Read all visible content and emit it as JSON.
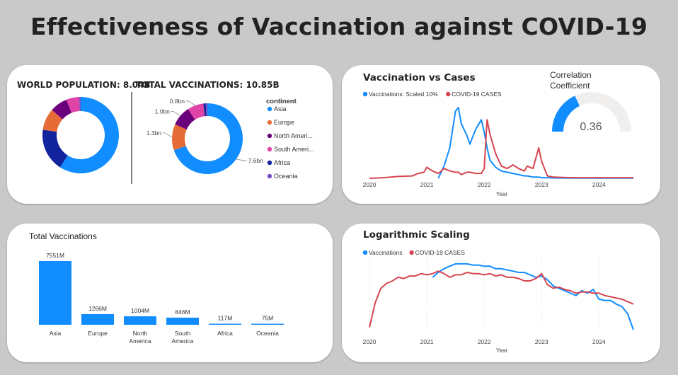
{
  "page": {
    "title": "Effectiveness of Vaccination against COVID-19"
  },
  "donut_card": {
    "world_population_label": "WORLD POPULATION: 8.04B",
    "total_vaccinations_label": "TOTAL VACCINATIONS: 10.85B",
    "legend_title": "continent",
    "legend": [
      {
        "name": "Asia",
        "color": "#118dff"
      },
      {
        "name": "Europe",
        "color": "#e66c37"
      },
      {
        "name": "North Ameri...",
        "color": "#6b007b"
      },
      {
        "name": "South Ameri...",
        "color": "#e044a7"
      },
      {
        "name": "Africa",
        "color": "#12239e"
      },
      {
        "name": "Oceania",
        "color": "#744ec2"
      }
    ]
  },
  "line_card1": {
    "title": "Vaccination vs Cases",
    "legend": [
      {
        "name": "Vaccinations: Scaled 10%",
        "color": "#118dff"
      },
      {
        "name": "COVID-19 CASES",
        "color": "#d64550"
      }
    ],
    "xlabel": "Year",
    "gauge": {
      "title_line1": "Correlation",
      "title_line2": "Coefficient",
      "value": 0.36,
      "value_label": "0.36",
      "fill_color": "#118dff",
      "track_color": "#f0efed"
    }
  },
  "bar_card": {
    "title": "Total Vaccinations"
  },
  "line_card2": {
    "title": "Logarithmic Scaling",
    "legend": [
      {
        "name": "Vaccinations",
        "color": "#118dff"
      },
      {
        "name": "COVID-19 CASES",
        "color": "#d64550"
      }
    ],
    "xlabel": "Year"
  },
  "chart_data": [
    {
      "type": "pie",
      "name": "World Population by continent",
      "categories": [
        "Asia",
        "Africa",
        "Europe",
        "North America",
        "South America",
        "Oceania"
      ],
      "values": [
        4.75,
        1.46,
        0.74,
        0.6,
        0.44,
        0.05
      ],
      "colors": [
        "#118dff",
        "#12239e",
        "#e66c37",
        "#6b007b",
        "#e044a7",
        "#744ec2"
      ]
    },
    {
      "type": "pie",
      "name": "Total Vaccinations by continent",
      "categories": [
        "Asia",
        "Europe",
        "North America",
        "South America",
        "Africa",
        "Oceania"
      ],
      "values": [
        7.6,
        1.3,
        1.0,
        0.8,
        0.12,
        0.08
      ],
      "data_labels": [
        "7.6bn",
        "1.3bn",
        "1.0bn",
        "0.8bn",
        "",
        ""
      ],
      "colors": [
        "#118dff",
        "#e66c37",
        "#6b007b",
        "#e044a7",
        "#12239e",
        "#744ec2"
      ]
    },
    {
      "type": "line",
      "title": "Vaccination vs Cases",
      "x": [
        2020.0,
        2020.25,
        2020.5,
        2020.75,
        2020.85,
        2020.95,
        2021.0,
        2021.1,
        2021.2,
        2021.3,
        2021.4,
        2021.5,
        2021.55,
        2021.6,
        2021.7,
        2021.75,
        2021.85,
        2021.95,
        2022.0,
        2022.05,
        2022.1,
        2022.2,
        2022.3,
        2022.4,
        2022.5,
        2022.6,
        2022.7,
        2022.75,
        2022.85,
        2022.95,
        2023.0,
        2023.05,
        2023.1,
        2023.2,
        2023.5,
        2024.0,
        2024.6
      ],
      "series": [
        {
          "name": "Vaccinations: Scaled 10%",
          "values": [
            null,
            null,
            null,
            null,
            null,
            null,
            null,
            null,
            0,
            10,
            25,
            55,
            58,
            45,
            35,
            28,
            40,
            48,
            38,
            25,
            15,
            9,
            6,
            5,
            4,
            3,
            2,
            2,
            1,
            1,
            0.5,
            0.5,
            0.5,
            0.3,
            0.2,
            0.1,
            0.1
          ]
        },
        {
          "name": "COVID-19 CASES",
          "values": [
            0,
            0.5,
            1.5,
            2,
            4,
            5,
            9,
            6,
            4,
            8,
            6,
            5,
            5,
            3,
            5,
            5,
            4,
            4,
            8,
            48,
            36,
            20,
            10,
            8,
            11,
            8,
            6,
            10,
            8,
            25,
            14,
            8,
            2,
            1,
            0.5,
            0.5,
            0.5
          ]
        }
      ],
      "xlabel": "Year",
      "ticks": [
        "2020",
        "2021",
        "2022",
        "2023",
        "2024"
      ]
    },
    {
      "type": "gauge",
      "title": "Correlation Coefficient",
      "value": 0.36,
      "range": [
        0,
        1
      ]
    },
    {
      "type": "bar",
      "title": "Total Vaccinations",
      "categories": [
        "Asia",
        "Europe",
        "North America",
        "South America",
        "Africa",
        "Oceania"
      ],
      "values": [
        7551,
        1266,
        1004,
        846,
        117,
        75
      ],
      "data_labels": [
        "7551M",
        "1266M",
        "1004M",
        "846M",
        "117M",
        "75M"
      ],
      "color": "#118dff"
    },
    {
      "type": "line",
      "title": "Logarithmic Scaling",
      "x": [
        2020.0,
        2020.1,
        2020.2,
        2020.3,
        2020.4,
        2020.5,
        2020.6,
        2020.7,
        2020.8,
        2020.9,
        2021.0,
        2021.1,
        2021.2,
        2021.3,
        2021.4,
        2021.5,
        2021.6,
        2021.7,
        2021.8,
        2021.9,
        2022.0,
        2022.1,
        2022.2,
        2022.3,
        2022.4,
        2022.5,
        2022.6,
        2022.7,
        2022.8,
        2022.9,
        2023.0,
        2023.1,
        2023.2,
        2023.3,
        2023.4,
        2023.5,
        2023.6,
        2023.7,
        2023.8,
        2023.9,
        2024.0,
        2024.1,
        2024.2,
        2024.3,
        2024.4,
        2024.5,
        2024.6
      ],
      "series": [
        {
          "name": "Vaccinations",
          "values": [
            null,
            null,
            null,
            null,
            null,
            null,
            null,
            null,
            null,
            null,
            null,
            41,
            45,
            48,
            50,
            52,
            52,
            52,
            51,
            51,
            50,
            50,
            48,
            48,
            47,
            46,
            45,
            45,
            43,
            41,
            42,
            39,
            34,
            32,
            30,
            28,
            26,
            30,
            28,
            31,
            23,
            22,
            22,
            19,
            17,
            11,
            -2
          ]
        },
        {
          "name": "COVID-19 CASES",
          "values": [
            0,
            20,
            32,
            36,
            38,
            41,
            40,
            42,
            42,
            44,
            43,
            44,
            46,
            44,
            41,
            43,
            43,
            45,
            44,
            44,
            43,
            44,
            42,
            43,
            41,
            41,
            40,
            38,
            38,
            40,
            44,
            35,
            32,
            33,
            31,
            30,
            28,
            29,
            29,
            28,
            28,
            26,
            25,
            24,
            23,
            21,
            19
          ]
        }
      ],
      "xlabel": "Year",
      "ticks": [
        "2020",
        "2021",
        "2022",
        "2023",
        "2024"
      ]
    }
  ]
}
